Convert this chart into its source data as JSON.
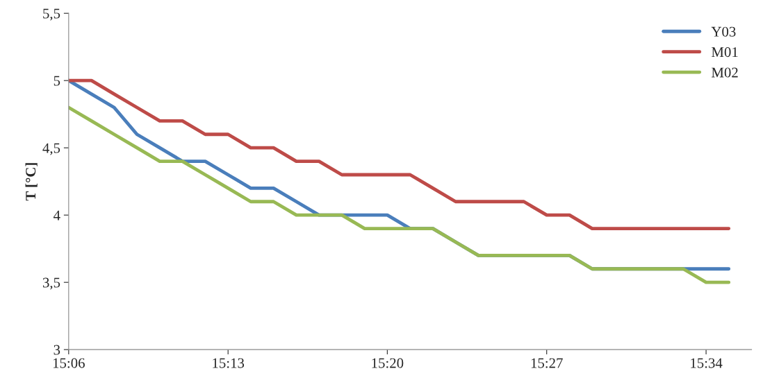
{
  "chart_data": {
    "type": "line",
    "ylabel": "T [°C]",
    "x": [
      15.1,
      15.1167,
      15.1333,
      15.15,
      15.1667,
      15.1833,
      15.2,
      15.2167,
      15.2333,
      15.25,
      15.2667,
      15.2833,
      15.3,
      15.3167,
      15.3333,
      15.35,
      15.3667,
      15.3833,
      15.4,
      15.4167,
      15.4333,
      15.45,
      15.4667,
      15.4833,
      15.5,
      15.5167,
      15.5333,
      15.55,
      15.5667,
      15.5833
    ],
    "series": [
      {
        "name": "Y03",
        "color": "#4a7ebb",
        "values": [
          5.0,
          4.9,
          4.8,
          4.6,
          4.5,
          4.4,
          4.4,
          4.3,
          4.2,
          4.2,
          4.1,
          4.0,
          4.0,
          4.0,
          4.0,
          3.9,
          3.9,
          3.8,
          3.7,
          3.7,
          3.7,
          3.7,
          3.7,
          3.6,
          3.6,
          3.6,
          3.6,
          3.6,
          3.6,
          3.6
        ]
      },
      {
        "name": "M01",
        "color": "#be4b48",
        "values": [
          5.0,
          5.0,
          4.9,
          4.8,
          4.7,
          4.7,
          4.6,
          4.6,
          4.5,
          4.5,
          4.4,
          4.4,
          4.3,
          4.3,
          4.3,
          4.3,
          4.2,
          4.1,
          4.1,
          4.1,
          4.1,
          4.0,
          4.0,
          3.9,
          3.9,
          3.9,
          3.9,
          3.9,
          3.9,
          3.9
        ]
      },
      {
        "name": "M02",
        "color": "#98b954",
        "values": [
          4.8,
          4.7,
          4.6,
          4.5,
          4.4,
          4.4,
          4.3,
          4.2,
          4.1,
          4.1,
          4.0,
          4.0,
          4.0,
          3.9,
          3.9,
          3.9,
          3.9,
          3.8,
          3.7,
          3.7,
          3.7,
          3.7,
          3.7,
          3.6,
          3.6,
          3.6,
          3.6,
          3.6,
          3.5,
          3.5
        ]
      }
    ],
    "xlim": [
      15.1,
      15.6
    ],
    "xticks": [
      {
        "value": 15.1,
        "label": "15:06"
      },
      {
        "value": 15.2167,
        "label": "15:13"
      },
      {
        "value": 15.3333,
        "label": "15:20"
      },
      {
        "value": 15.45,
        "label": "15:27"
      },
      {
        "value": 15.5667,
        "label": "15:34"
      }
    ],
    "ylim": [
      3,
      5.5
    ],
    "yticks": [
      {
        "value": 3,
        "label": "3"
      },
      {
        "value": 3.5,
        "label": "3,5"
      },
      {
        "value": 4,
        "label": "4"
      },
      {
        "value": 4.5,
        "label": "4,5"
      },
      {
        "value": 5,
        "label": "5"
      },
      {
        "value": 5.5,
        "label": "5,5"
      }
    ],
    "grid": false,
    "legend": "top right",
    "marker": "none",
    "line_style": "solid"
  }
}
